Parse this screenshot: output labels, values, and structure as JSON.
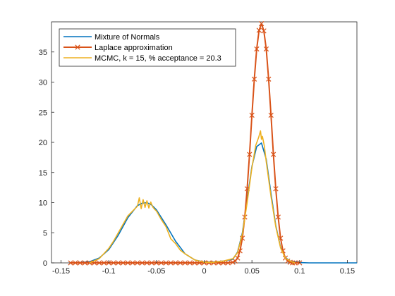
{
  "chart_data": {
    "type": "line",
    "title": "",
    "xlabel": "",
    "ylabel": "",
    "xlim": [
      -0.16,
      0.16
    ],
    "ylim": [
      0,
      40
    ],
    "xticks": [
      -0.15,
      -0.1,
      -0.05,
      0,
      0.05,
      0.1,
      0.15
    ],
    "xtick_labels": [
      "-0.15",
      "-0.1",
      "-0.05",
      "0",
      "0.05",
      "0.1",
      "0.15"
    ],
    "yticks": [
      0,
      5,
      10,
      15,
      20,
      25,
      30,
      35
    ],
    "ytick_labels": [
      "0",
      "5",
      "10",
      "15",
      "20",
      "25",
      "30",
      "35"
    ],
    "grid": false,
    "legend_position": "top-left",
    "series": [
      {
        "name": "Mixture of Normals",
        "color": "#0072BD",
        "marker": "none",
        "x": [
          -0.14,
          -0.13,
          -0.12,
          -0.11,
          -0.1,
          -0.09,
          -0.08,
          -0.07,
          -0.065,
          -0.06,
          -0.055,
          -0.05,
          -0.04,
          -0.03,
          -0.02,
          -0.01,
          0,
          0.01,
          0.02,
          0.03,
          0.035,
          0.04,
          0.045,
          0.05,
          0.055,
          0.06,
          0.065,
          0.07,
          0.075,
          0.08,
          0.085,
          0.09,
          0.1,
          0.11,
          0.12,
          0.13,
          0.14,
          0.15,
          0.16
        ],
        "y": [
          0,
          0.05,
          0.2,
          0.8,
          2.2,
          4.6,
          7.5,
          9.5,
          9.9,
          10,
          9.6,
          8.8,
          6.3,
          3.6,
          1.5,
          0.5,
          0.15,
          0.15,
          0.3,
          0.6,
          1.8,
          5.0,
          10.5,
          16.0,
          19.3,
          19.9,
          17.2,
          11.5,
          6.2,
          2.6,
          0.9,
          0.3,
          0.05,
          0,
          0,
          0,
          0,
          0,
          0
        ]
      },
      {
        "name": "Laplace approximation",
        "color": "#D95319",
        "marker": "x",
        "x": [
          -0.14,
          -0.135,
          -0.13,
          -0.125,
          -0.12,
          -0.115,
          -0.11,
          -0.105,
          -0.1,
          -0.095,
          -0.09,
          -0.085,
          -0.08,
          -0.075,
          -0.07,
          -0.065,
          -0.06,
          -0.055,
          -0.05,
          -0.045,
          -0.04,
          -0.035,
          -0.03,
          -0.025,
          -0.02,
          -0.015,
          -0.01,
          -0.005,
          0,
          0.005,
          0.01,
          0.015,
          0.02,
          0.025,
          0.03,
          0.0325,
          0.035,
          0.0375,
          0.04,
          0.0425,
          0.045,
          0.0475,
          0.05,
          0.0525,
          0.055,
          0.0575,
          0.06,
          0.0625,
          0.065,
          0.0675,
          0.07,
          0.0725,
          0.075,
          0.0775,
          0.08,
          0.0825,
          0.085,
          0.0875,
          0.09,
          0.0925,
          0.095,
          0.1
        ],
        "y": [
          0,
          0,
          0,
          0,
          0,
          0,
          0,
          0,
          0,
          0,
          0,
          0,
          0,
          0,
          0,
          0,
          0,
          0,
          0,
          0,
          0,
          0,
          0,
          0,
          0,
          0,
          0,
          0,
          0,
          0,
          0,
          0,
          0,
          0,
          0.1,
          0.3,
          0.8,
          2.0,
          4.1,
          7.6,
          12.3,
          18.0,
          24.5,
          30.5,
          35.5,
          38.6,
          39.7,
          38.5,
          35.5,
          30.5,
          24.5,
          18.0,
          12.3,
          7.6,
          4.1,
          2.0,
          0.8,
          0.3,
          0.1,
          0,
          0,
          0
        ]
      },
      {
        "name": "MCMC, k = 15, % acceptance = 20.3",
        "color": "#EDB120",
        "marker": "none",
        "x": [
          -0.12,
          -0.11,
          -0.1,
          -0.095,
          -0.09,
          -0.085,
          -0.08,
          -0.075,
          -0.07,
          -0.068,
          -0.066,
          -0.064,
          -0.062,
          -0.06,
          -0.058,
          -0.056,
          -0.054,
          -0.052,
          -0.05,
          -0.045,
          -0.04,
          -0.035,
          -0.03,
          -0.025,
          -0.02,
          -0.01,
          0,
          0.01,
          0.02,
          0.03,
          0.035,
          0.04,
          0.045,
          0.05,
          0.054,
          0.057,
          0.059,
          0.06,
          0.061,
          0.063,
          0.065,
          0.07,
          0.075,
          0.08,
          0.085,
          0.09,
          0.095
        ],
        "y": [
          0,
          0.7,
          2.4,
          3.6,
          5.0,
          6.4,
          7.8,
          8.6,
          9.4,
          10.8,
          9.0,
          10.5,
          9.2,
          10.3,
          9.1,
          10.1,
          9.3,
          8.9,
          8.6,
          7.2,
          6.0,
          4.0,
          3.2,
          2.1,
          1.5,
          0.5,
          0.1,
          0.1,
          0.3,
          0.7,
          1.7,
          4.8,
          10.0,
          15.8,
          19.5,
          20.8,
          21.9,
          20.5,
          21.0,
          19.4,
          16.8,
          11.0,
          6.0,
          2.5,
          0.8,
          0.3,
          0
        ]
      }
    ]
  }
}
